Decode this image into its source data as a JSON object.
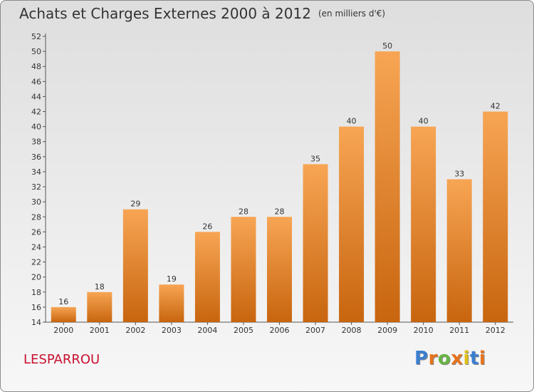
{
  "header": {
    "title": "Achats et Charges Externes 2000 à 2012",
    "subtitle": "(en milliers d'€)"
  },
  "footer": {
    "commune": "LESPARROU",
    "brand": "Proxiti",
    "brand_colors": [
      "#3a7fd0",
      "#e8731c",
      "#67b544",
      "#e8731c",
      "#e0c015",
      "#3a7fd0",
      "#e8731c"
    ]
  },
  "colors": {
    "bar_light": "#f7a554",
    "bar_dark": "#c8650f",
    "title": "#333333",
    "commune": "#c8102e"
  },
  "chart_data": {
    "type": "bar",
    "title": "Achats et Charges Externes 2000 à 2012",
    "subtitle": "(en milliers d'€)",
    "xlabel": "",
    "ylabel": "",
    "categories": [
      "2000",
      "2001",
      "2002",
      "2003",
      "2004",
      "2005",
      "2006",
      "2007",
      "2008",
      "2009",
      "2010",
      "2011",
      "2012"
    ],
    "values": [
      16,
      18,
      29,
      19,
      26,
      28,
      28,
      35,
      40,
      50,
      40,
      33,
      42
    ],
    "ylim": [
      14,
      52
    ],
    "ytick_step": 2,
    "grid": false,
    "legend": "none"
  }
}
